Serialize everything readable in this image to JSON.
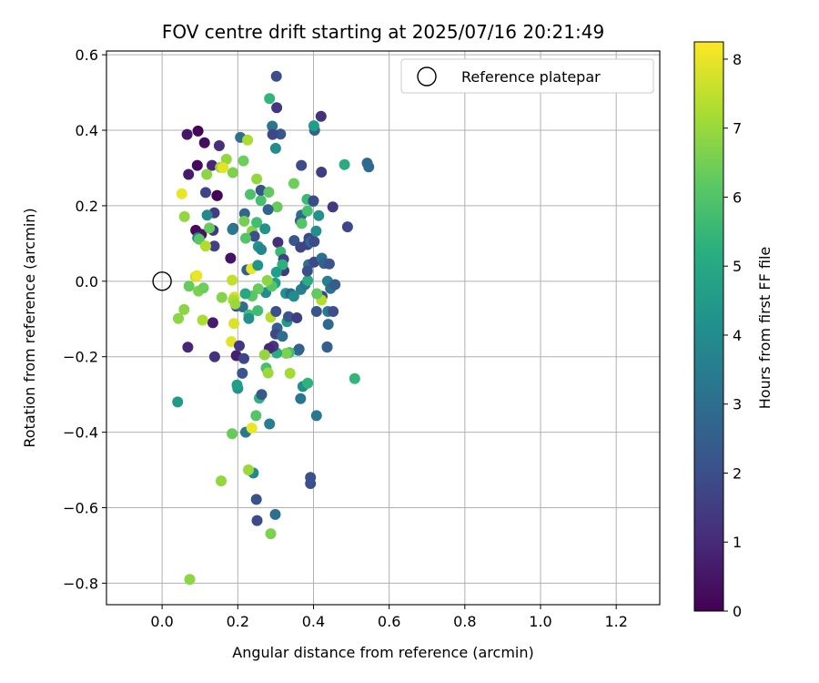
{
  "chart_data": {
    "type": "scatter",
    "title": "FOV centre drift starting at 2025/07/16 20:21:49",
    "xlabel": "Angular distance from reference (arcmin)",
    "ylabel": "Rotation from reference (arcmin)",
    "xlim": [
      -0.147,
      1.315
    ],
    "ylim": [
      -0.857,
      0.61
    ],
    "xticks": [
      0.0,
      0.2,
      0.4,
      0.6,
      0.8,
      1.0,
      1.2
    ],
    "xtick_labels": [
      "0.0",
      "0.2",
      "0.4",
      "0.6",
      "0.8",
      "1.0",
      "1.2"
    ],
    "yticks": [
      -0.8,
      -0.6,
      -0.4,
      -0.2,
      0.0,
      0.2,
      0.4,
      0.6
    ],
    "ytick_labels": [
      "−0.8",
      "−0.6",
      "−0.4",
      "−0.2",
      "0.0",
      "0.2",
      "0.4",
      "0.6"
    ],
    "grid": true,
    "legend": {
      "position": "top-right",
      "entries": [
        "Reference platepar"
      ]
    },
    "reference_point": {
      "x": 0.0,
      "y": 0.0
    },
    "colorbar": {
      "label": "Hours from first FF file",
      "colormap": "viridis",
      "range": [
        0,
        8.25
      ],
      "ticks": [
        0,
        1,
        2,
        3,
        4,
        5,
        6,
        7,
        8
      ],
      "tick_labels": [
        "0",
        "1",
        "2",
        "3",
        "4",
        "5",
        "6",
        "7",
        "8"
      ]
    },
    "points": [
      [
        0.066,
        0.389,
        0.5
      ],
      [
        0.095,
        0.398,
        0.1
      ],
      [
        0.112,
        0.367,
        0.3
      ],
      [
        0.07,
        0.283,
        0.6
      ],
      [
        0.093,
        0.307,
        0.2
      ],
      [
        0.132,
        0.307,
        0.9
      ],
      [
        0.146,
        0.227,
        0.3
      ],
      [
        0.151,
        0.359,
        1.1
      ],
      [
        0.089,
        0.135,
        0.2
      ],
      [
        0.104,
        0.124,
        0.4
      ],
      [
        0.135,
        0.135,
        1.4
      ],
      [
        0.138,
        0.093,
        1.6
      ],
      [
        0.138,
        0.181,
        1.5
      ],
      [
        0.115,
        0.235,
        1.7
      ],
      [
        0.181,
        0.061,
        0.4
      ],
      [
        0.134,
        -0.11,
        0.6
      ],
      [
        0.068,
        -0.175,
        0.9
      ],
      [
        0.139,
        -0.2,
        1.2
      ],
      [
        0.196,
        -0.197,
        0.7
      ],
      [
        0.216,
        -0.205,
        1.8
      ],
      [
        0.196,
        -0.066,
        2.1
      ],
      [
        0.188,
        0.14,
        2.4
      ],
      [
        0.218,
        0.179,
        2.7
      ],
      [
        0.207,
        0.381,
        3.0
      ],
      [
        0.186,
        0.137,
        3.3
      ],
      [
        0.094,
        0.115,
        3.6
      ],
      [
        0.119,
        0.175,
        3.9
      ],
      [
        0.154,
        0.302,
        7.0
      ],
      [
        0.17,
        0.323,
        6.9
      ],
      [
        0.187,
        0.288,
        6.6
      ],
      [
        0.161,
        0.301,
        7.9
      ],
      [
        0.226,
        0.374,
        7.2
      ],
      [
        0.215,
        0.319,
        6.4
      ],
      [
        0.118,
        0.283,
        6.8
      ],
      [
        0.052,
        0.232,
        8.0
      ],
      [
        0.059,
        0.171,
        6.9
      ],
      [
        0.098,
        0.111,
        6.1
      ],
      [
        0.115,
        0.093,
        7.3
      ],
      [
        0.125,
        0.141,
        6.3
      ],
      [
        0.217,
        0.159,
        6.5
      ],
      [
        0.238,
        0.133,
        6.7
      ],
      [
        0.233,
        0.23,
        5.9
      ],
      [
        0.25,
        0.156,
        5.7
      ],
      [
        0.25,
        0.271,
        6.9
      ],
      [
        0.261,
        0.214,
        5.8
      ],
      [
        0.261,
        0.241,
        2.1
      ],
      [
        0.282,
        0.236,
        6.2
      ],
      [
        0.284,
        0.484,
        5.4
      ],
      [
        0.291,
        0.411,
        3.2
      ],
      [
        0.302,
        0.543,
        2.0
      ],
      [
        0.303,
        0.46,
        1.3
      ],
      [
        0.313,
        0.39,
        2.2
      ],
      [
        0.292,
        0.389,
        1.8
      ],
      [
        0.3,
        0.352,
        4.0
      ],
      [
        0.304,
        0.197,
        6.3
      ],
      [
        0.28,
        0.19,
        2.6
      ],
      [
        0.272,
        0.139,
        4.2
      ],
      [
        0.244,
        0.119,
        2.0
      ],
      [
        0.221,
        0.114,
        6.0
      ],
      [
        0.224,
        0.03,
        2.5
      ],
      [
        0.236,
        0.033,
        8.0
      ],
      [
        0.254,
        0.092,
        4.3
      ],
      [
        0.262,
        0.084,
        3.8
      ],
      [
        0.253,
        0.042,
        4.3
      ],
      [
        0.274,
        -0.03,
        4.0
      ],
      [
        0.306,
        0.103,
        1.1
      ],
      [
        0.313,
        0.078,
        5.6
      ],
      [
        0.321,
        0.058,
        1.6
      ],
      [
        0.322,
        0.028,
        1.4
      ],
      [
        0.318,
        0.044,
        5.2
      ],
      [
        0.302,
        0.024,
        4.6
      ],
      [
        0.299,
        -0.005,
        4.6
      ],
      [
        0.29,
        -0.013,
        6.0
      ],
      [
        0.278,
        0.002,
        6.8
      ],
      [
        0.254,
        -0.02,
        6.3
      ],
      [
        0.238,
        -0.039,
        6.1
      ],
      [
        0.22,
        -0.033,
        4.9
      ],
      [
        0.213,
        -0.068,
        3.0
      ],
      [
        0.229,
        -0.089,
        5.7
      ],
      [
        0.229,
        -0.099,
        4.1
      ],
      [
        0.253,
        -0.078,
        5.7
      ],
      [
        0.287,
        -0.095,
        7.3
      ],
      [
        0.301,
        -0.08,
        2.0
      ],
      [
        0.304,
        -0.124,
        2.5
      ],
      [
        0.3,
        -0.14,
        1.8
      ],
      [
        0.318,
        -0.146,
        3.0
      ],
      [
        0.33,
        -0.107,
        4.5
      ],
      [
        0.334,
        -0.094,
        2.2
      ],
      [
        0.327,
        -0.032,
        4.3
      ],
      [
        0.34,
        -0.033,
        2.8
      ],
      [
        0.348,
        -0.04,
        4.0
      ],
      [
        0.367,
        -0.022,
        3.6
      ],
      [
        0.378,
        -0.009,
        3.3
      ],
      [
        0.385,
        0.002,
        5.1
      ],
      [
        0.387,
        0.044,
        3.0
      ],
      [
        0.384,
        0.027,
        2.0
      ],
      [
        0.384,
        0.097,
        1.6
      ],
      [
        0.388,
        0.114,
        1.9
      ],
      [
        0.393,
        0.104,
        2.8
      ],
      [
        0.402,
        0.105,
        1.9
      ],
      [
        0.407,
        0.133,
        4.1
      ],
      [
        0.349,
        0.108,
        2.2
      ],
      [
        0.366,
        0.09,
        1.7
      ],
      [
        0.368,
        0.175,
        3.0
      ],
      [
        0.365,
        0.16,
        2.6
      ],
      [
        0.369,
        0.153,
        6.0
      ],
      [
        0.384,
        0.186,
        5.8
      ],
      [
        0.383,
        0.217,
        5.6
      ],
      [
        0.399,
        0.211,
        4.8
      ],
      [
        0.4,
        0.213,
        1.9
      ],
      [
        0.414,
        0.174,
        4.2
      ],
      [
        0.451,
        0.197,
        1.4
      ],
      [
        0.49,
        0.144,
        1.8
      ],
      [
        0.482,
        0.309,
        5.1
      ],
      [
        0.542,
        0.313,
        2.8
      ],
      [
        0.546,
        0.303,
        2.8
      ],
      [
        0.421,
        0.289,
        1.5
      ],
      [
        0.403,
        0.4,
        2.6
      ],
      [
        0.401,
        0.412,
        4.6
      ],
      [
        0.42,
        0.437,
        1.2
      ],
      [
        0.368,
        0.307,
        1.9
      ],
      [
        0.348,
        0.259,
        6.4
      ],
      [
        0.402,
        0.051,
        1.8
      ],
      [
        0.422,
        0.061,
        3.0
      ],
      [
        0.428,
        0.047,
        2.6
      ],
      [
        0.442,
        0.046,
        2.2
      ],
      [
        0.437,
        0.0,
        3.6
      ],
      [
        0.445,
        -0.019,
        3.0
      ],
      [
        0.457,
        -0.009,
        2.4
      ],
      [
        0.423,
        -0.04,
        1.7
      ],
      [
        0.408,
        -0.08,
        2.2
      ],
      [
        0.438,
        -0.08,
        3.4
      ],
      [
        0.452,
        -0.08,
        2.0
      ],
      [
        0.421,
        -0.05,
        7.3
      ],
      [
        0.409,
        -0.033,
        6.2
      ],
      [
        0.439,
        -0.114,
        2.8
      ],
      [
        0.436,
        -0.175,
        2.8
      ],
      [
        0.436,
        -0.174,
        2.5
      ],
      [
        0.356,
        -0.097,
        1.5
      ],
      [
        0.36,
        -0.183,
        3.6
      ],
      [
        0.362,
        -0.18,
        2.6
      ],
      [
        0.336,
        -0.189,
        5.7
      ],
      [
        0.328,
        -0.191,
        6.6
      ],
      [
        0.303,
        -0.19,
        5.1
      ],
      [
        0.294,
        -0.172,
        1.4
      ],
      [
        0.283,
        -0.178,
        0.9
      ],
      [
        0.275,
        -0.23,
        5.8
      ],
      [
        0.271,
        -0.195,
        6.9
      ],
      [
        0.28,
        -0.243,
        7.0
      ],
      [
        0.338,
        -0.244,
        7.1
      ],
      [
        0.372,
        -0.279,
        4.1
      ],
      [
        0.366,
        -0.311,
        3.2
      ],
      [
        0.385,
        -0.27,
        5.3
      ],
      [
        0.408,
        -0.356,
        3.3
      ],
      [
        0.509,
        -0.258,
        5.4
      ],
      [
        0.392,
        -0.52,
        2.1
      ],
      [
        0.392,
        -0.536,
        2.0
      ],
      [
        0.299,
        -0.618,
        3.0
      ],
      [
        0.249,
        -0.578,
        2.1
      ],
      [
        0.251,
        -0.634,
        1.9
      ],
      [
        0.287,
        -0.669,
        6.6
      ],
      [
        0.241,
        -0.508,
        3.9
      ],
      [
        0.228,
        -0.5,
        7.0
      ],
      [
        0.156,
        -0.529,
        6.9
      ],
      [
        0.073,
        -0.79,
        6.8
      ],
      [
        0.185,
        -0.404,
        6.3
      ],
      [
        0.221,
        -0.4,
        3.3
      ],
      [
        0.237,
        -0.389,
        8.0
      ],
      [
        0.284,
        -0.378,
        3.5
      ],
      [
        0.248,
        -0.356,
        6.0
      ],
      [
        0.257,
        -0.31,
        5.3
      ],
      [
        0.263,
        -0.3,
        2.3
      ],
      [
        0.2,
        -0.284,
        4.2
      ],
      [
        0.198,
        -0.275,
        4.6
      ],
      [
        0.041,
        -0.32,
        4.4
      ],
      [
        0.212,
        -0.244,
        2.2
      ],
      [
        0.043,
        -0.099,
        6.8
      ],
      [
        0.058,
        -0.075,
        6.8
      ],
      [
        0.071,
        -0.013,
        6.3
      ],
      [
        0.088,
        0.012,
        7.6
      ],
      [
        0.092,
        0.015,
        8.0
      ],
      [
        0.096,
        -0.026,
        6.6
      ],
      [
        0.109,
        -0.018,
        6.4
      ],
      [
        0.107,
        -0.103,
        7.2
      ],
      [
        0.158,
        -0.043,
        6.7
      ],
      [
        0.191,
        -0.042,
        7.7
      ],
      [
        0.188,
        -0.05,
        7.2
      ],
      [
        0.193,
        -0.06,
        7.0
      ],
      [
        0.185,
        0.003,
        7.5
      ],
      [
        0.19,
        -0.112,
        7.8
      ],
      [
        0.183,
        -0.16,
        7.9
      ],
      [
        0.204,
        -0.171,
        1.4
      ],
      [
        0.145,
        0.227,
        0.1
      ]
    ]
  }
}
